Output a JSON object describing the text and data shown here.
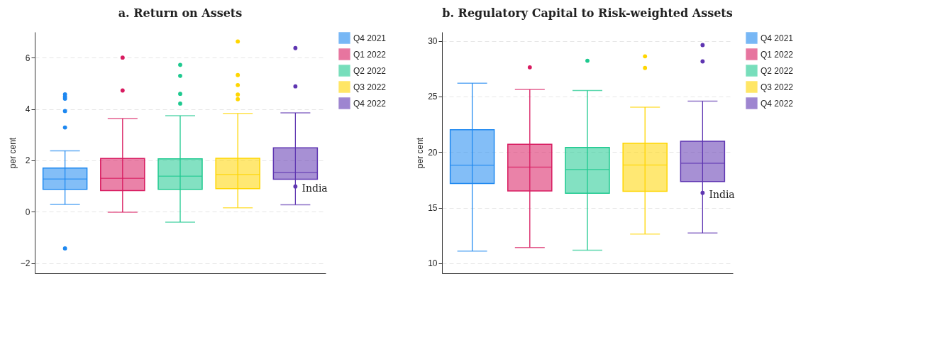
{
  "chart_data": [
    {
      "type": "box",
      "title": "a. Return on Assets",
      "ylabel": "per cent",
      "categories": [
        null,
        null,
        null,
        null,
        null
      ],
      "tick_labels": "y",
      "legend": "right",
      "grid": "y",
      "ylim": [
        -2.4,
        7
      ],
      "yticks": [
        -2,
        0,
        2,
        4,
        6
      ],
      "series": [
        {
          "name": "Q4 2021",
          "color": "#1e88f0",
          "boxes": [
            {
              "low": 0.28,
              "q1": 0.87,
              "median": 1.27,
              "q3": 1.7,
              "high": 2.37,
              "outliers": [
                4.57,
                4.47,
                4.4,
                3.92,
                3.28,
                -1.43
              ]
            },
            null,
            null,
            null,
            null
          ]
        },
        {
          "name": "Q1 2022",
          "color": "#d81b60",
          "boxes": [
            null,
            {
              "low": -0.02,
              "q1": 0.82,
              "median": 1.3,
              "q3": 2.07,
              "high": 3.63,
              "outliers": [
                6.0,
                4.72
              ]
            },
            null,
            null,
            null
          ]
        },
        {
          "name": "Q2 2022",
          "color": "#1ec98f",
          "boxes": [
            null,
            null,
            {
              "low": -0.41,
              "q1": 0.87,
              "median": 1.38,
              "q3": 2.06,
              "high": 3.74,
              "outliers": [
                5.72,
                5.29,
                4.59,
                4.21
              ]
            },
            null,
            null
          ]
        },
        {
          "name": "Q3 2022",
          "color": "#ffd600",
          "boxes": [
            null,
            null,
            null,
            {
              "low": 0.15,
              "q1": 0.9,
              "median": 1.45,
              "q3": 2.08,
              "high": 3.83,
              "outliers": [
                6.63,
                5.32,
                4.93,
                4.56,
                4.38
              ]
            },
            null
          ]
        },
        {
          "name": "Q4 2022",
          "color": "#5e35b1",
          "boxes": [
            null,
            null,
            null,
            null,
            {
              "low": 0.27,
              "q1": 1.26,
              "median": 1.52,
              "q3": 2.49,
              "high": 3.85,
              "outliers": [
                6.37,
                4.88
              ]
            }
          ]
        },
        {
          "type": "scatter",
          "name": "India",
          "color": "#5e35b1",
          "values": [
            null,
            null,
            null,
            null,
            0.98
          ]
        }
      ]
    },
    {
      "type": "box",
      "title": "b. Regulatory Capital to Risk-weighted Assets",
      "ylabel": "per cent",
      "categories": [
        null,
        null,
        null,
        null,
        null
      ],
      "tick_labels": "y",
      "legend": "right",
      "grid": "y",
      "ylim": [
        9.1,
        30.8
      ],
      "yticks": [
        10,
        15,
        20,
        25,
        30
      ],
      "series": [
        {
          "name": "Q4 2021",
          "color": "#1e88f0",
          "boxes": [
            {
              "low": 11.09,
              "q1": 17.17,
              "median": 18.82,
              "q3": 22.01,
              "high": 26.19
            },
            null,
            null,
            null,
            null
          ]
        },
        {
          "name": "Q1 2022",
          "color": "#d81b60",
          "boxes": [
            null,
            {
              "low": 11.41,
              "q1": 16.51,
              "median": 18.64,
              "q3": 20.7,
              "high": 25.63,
              "outliers": [
                27.62
              ]
            },
            null,
            null,
            null
          ]
        },
        {
          "name": "Q2 2022",
          "color": "#1ec98f",
          "boxes": [
            null,
            null,
            {
              "low": 11.17,
              "q1": 16.29,
              "median": 18.44,
              "q3": 20.41,
              "high": 25.53,
              "outliers": [
                28.21
              ]
            },
            null,
            null
          ]
        },
        {
          "name": "Q3 2022",
          "color": "#ffd600",
          "boxes": [
            null,
            null,
            null,
            {
              "low": 12.62,
              "q1": 16.47,
              "median": 18.84,
              "q3": 20.8,
              "high": 24.04,
              "outliers": [
                28.61,
                27.56
              ]
            },
            null
          ]
        },
        {
          "name": "Q4 2022",
          "color": "#5e35b1",
          "boxes": [
            null,
            null,
            null,
            null,
            {
              "low": 12.72,
              "q1": 17.35,
              "median": 19.0,
              "q3": 20.97,
              "high": 24.58,
              "outliers": [
                29.62,
                28.15
              ]
            }
          ]
        },
        {
          "type": "scatter",
          "name": "India",
          "color": "#5e35b1",
          "values": [
            null,
            null,
            null,
            null,
            16.33
          ]
        }
      ]
    }
  ]
}
